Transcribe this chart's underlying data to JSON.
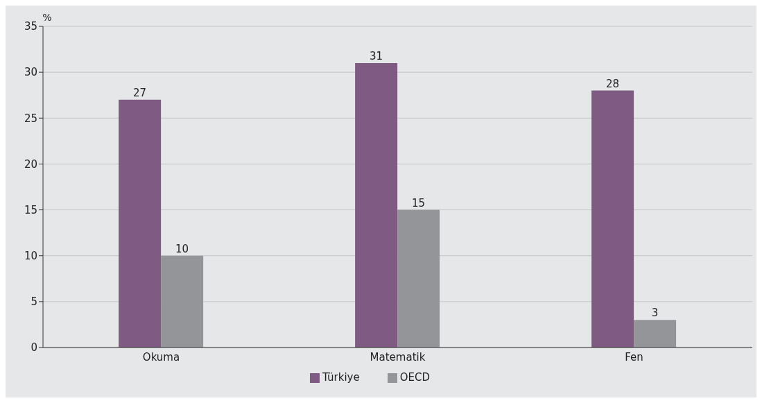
{
  "chart_data": {
    "type": "bar",
    "ylabel": "%",
    "categories": [
      "Okuma",
      "Matematik",
      "Fen"
    ],
    "series": [
      {
        "name": "Türkiye",
        "color": "#7f5b83",
        "values": [
          27,
          31,
          28
        ]
      },
      {
        "name": "OECD",
        "color": "#949599",
        "values": [
          10,
          15,
          3
        ]
      }
    ],
    "data_labels": true,
    "ylim": [
      0,
      35
    ],
    "yticks": [
      0,
      5,
      10,
      15,
      20,
      25,
      30,
      35
    ],
    "grid": "y",
    "legend": "bottom"
  }
}
